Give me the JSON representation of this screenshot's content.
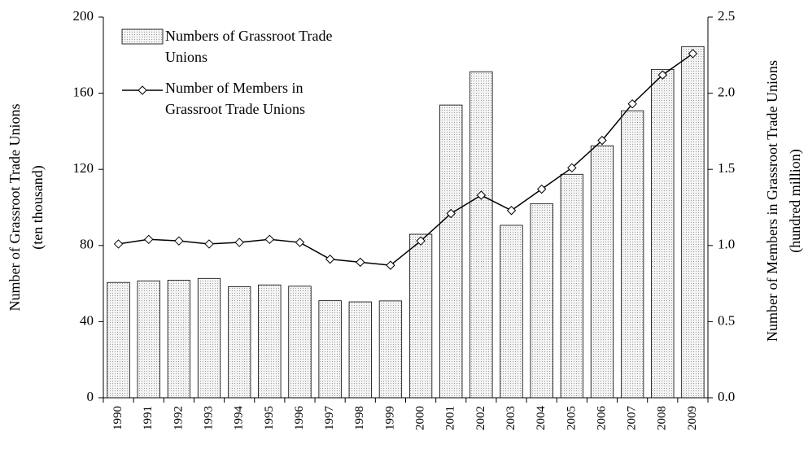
{
  "chart_data": {
    "type": "bar_line",
    "categories": [
      "1990",
      "1991",
      "1992",
      "1993",
      "1994",
      "1995",
      "1996",
      "1997",
      "1998",
      "1999",
      "2000",
      "2001",
      "2002",
      "2003",
      "2004",
      "2005",
      "2006",
      "2007",
      "2008",
      "2009"
    ],
    "series": [
      {
        "name": "Numbers of Grassroot Trade Unions",
        "type": "bar",
        "color": "#e8e8e8",
        "values": [
          60.6,
          61.4,
          61.7,
          62.7,
          58.3,
          59.3,
          58.6,
          51.0,
          50.4,
          50.9,
          85.9,
          153.8,
          171.3,
          90.6,
          102.0,
          117.4,
          132.4,
          150.8,
          172.5,
          184.5
        ]
      },
      {
        "name": "Number of Members in Grassroot Trade Unions",
        "type": "line",
        "axis": "y2",
        "color": "#000000",
        "values": [
          1.01,
          1.04,
          1.03,
          1.01,
          1.02,
          1.04,
          1.02,
          0.91,
          0.89,
          0.87,
          1.03,
          1.21,
          1.33,
          1.23,
          1.37,
          1.51,
          1.69,
          1.93,
          2.12,
          2.26
        ]
      }
    ],
    "y_label": [
      "Number of Grassroot Trade Unions",
      "(ten thousand)"
    ],
    "y2_label": [
      "Number of Members in Grassroot Trade Unions",
      "(hundred million)"
    ],
    "ylim": [
      0,
      200
    ],
    "yticks": [
      0,
      40,
      80,
      120,
      160,
      200
    ],
    "y2lim": [
      0,
      2.5
    ],
    "y2ticks": [
      {
        "value": 0,
        "label": "0.0"
      },
      0.5,
      {
        "value": 1,
        "label": "1.0"
      },
      1.5,
      {
        "value": 2,
        "label": "2.0"
      },
      2.5
    ],
    "legend": "top-left"
  }
}
